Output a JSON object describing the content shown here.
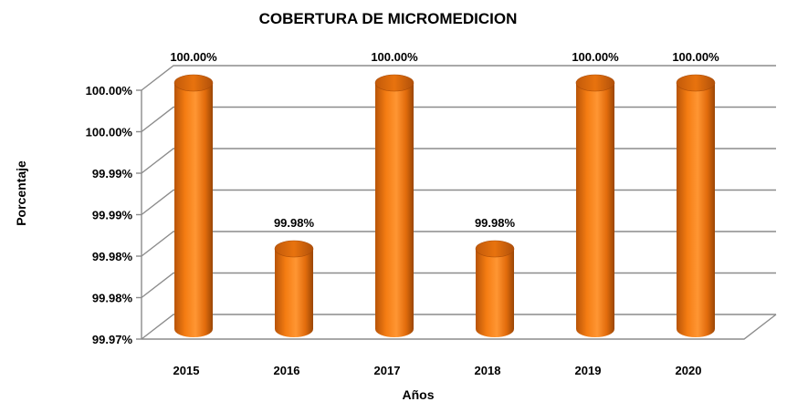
{
  "chart_data": {
    "type": "bar",
    "title": "COBERTURA DE MICROMEDICION",
    "xlabel": "Años",
    "ylabel": "Porcentaje",
    "categories": [
      "2015",
      "2016",
      "2017",
      "2018",
      "2019",
      "2020"
    ],
    "values": [
      100.0,
      99.98,
      100.0,
      99.98,
      100.0,
      100.0
    ],
    "data_labels": [
      "100.00%",
      "99.98%",
      "100.00%",
      "99.98%",
      "100.00%",
      "100.00%"
    ],
    "ytick_labels": [
      "99.97%",
      "99.98%",
      "99.98%",
      "99.99%",
      "99.99%",
      "100.00%",
      "100.00%"
    ],
    "ylim": [
      99.97,
      100.0
    ],
    "grid": true,
    "legend": "none",
    "style": "3d-cylinder",
    "colors": {
      "bar": "#f07a10",
      "bar_dark": "#a84a06",
      "bar_light": "#ff9a3a",
      "grid": "#8c8c8c"
    }
  }
}
